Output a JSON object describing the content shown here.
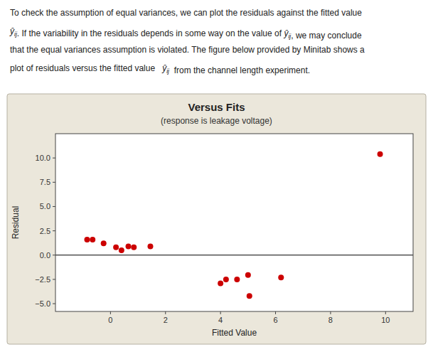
{
  "chart_data": {
    "type": "scatter",
    "title": "Versus Fits",
    "subtitle": "(response is leakage voltage)",
    "x_label": "Fitted Value",
    "y_label": "Residual",
    "x": [
      -0.85,
      -0.65,
      -0.25,
      0.2,
      0.4,
      0.65,
      0.85,
      1.45,
      4.0,
      4.2,
      4.6,
      5.0,
      5.05,
      6.2,
      9.8
    ],
    "values": [
      1.6,
      1.6,
      1.2,
      0.8,
      0.5,
      0.9,
      0.8,
      0.9,
      -2.9,
      -2.5,
      -2.5,
      -2.05,
      -4.2,
      -2.3,
      10.4
    ],
    "color": "#cc0000",
    "xlim": [
      -2,
      11
    ],
    "ylim": [
      -5.8,
      12.5
    ],
    "xticks": [
      0,
      2,
      4,
      6,
      8,
      10
    ],
    "yticks": [
      {
        "value": -5.0,
        "label": "−5.0"
      },
      {
        "value": -2.5,
        "label": "−2.5"
      },
      {
        "value": 0.0,
        "label": "0.0"
      },
      {
        "value": 2.5,
        "label": "2.5"
      },
      {
        "value": 5.0,
        "label": "5.0"
      },
      {
        "value": 7.5,
        "label": "7.5"
      },
      {
        "value": 10.0,
        "label": "10.0"
      }
    ],
    "reference_line": 0,
    "grid": false,
    "annotations": [
      [
        "To check the assumption of equal variances, we can plot the residuals against the fitted value"
      ],
      [
        {
          "base": "ŷ",
          "sub": "ij"
        },
        ". If the variability in the residuals depends in some way on the value of ",
        {
          "base": "ŷ",
          "sub": "ij"
        },
        ", we may conclude"
      ],
      [
        "that the equal variances assumption is violated. The figure below provided by Minitab shows a"
      ],
      [
        "plot of residuals versus the fitted value   ",
        {
          "base": "ŷ",
          "sub": "ij"
        },
        "  from the channel length experiment."
      ]
    ]
  }
}
